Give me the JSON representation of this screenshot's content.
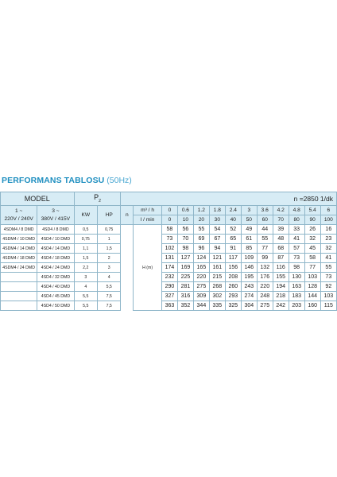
{
  "title": {
    "main": "PERFORMANS TABLOSU",
    "sub": "(50Hz)"
  },
  "header": {
    "model": "MODEL",
    "p2": "P",
    "p2_sub": "2",
    "speed": "n =2850 1/dk",
    "single_phase": "1 ~",
    "single_phase_v": "220V / 240V",
    "three_phase": "3 ~",
    "three_phase_v": "380V / 415V",
    "kw": "KW",
    "hp": "HP",
    "n": "n",
    "flow_m3h": "m³ / h",
    "flow_lmin": "l / min",
    "head_unit": "H (m)"
  },
  "flow_m3h": [
    "0",
    "0.6",
    "1.2",
    "1.8",
    "2.4",
    "3",
    "3.6",
    "4.2",
    "4.8",
    "5.4",
    "6"
  ],
  "flow_lmin": [
    "0",
    "10",
    "20",
    "30",
    "40",
    "50",
    "60",
    "70",
    "80",
    "90",
    "100"
  ],
  "rows": [
    {
      "m1": "4SDM4 / 8 DMD",
      "m3": "4SD4 / 8 DMD",
      "kw": "0,5",
      "hp": "0,75",
      "h": [
        "58",
        "56",
        "55",
        "54",
        "52",
        "49",
        "44",
        "39",
        "33",
        "26",
        "16"
      ]
    },
    {
      "m1": "4SDM4 / 10 DMD",
      "m3": "4SD4 / 10 DMD",
      "kw": "0,75",
      "hp": "1",
      "h": [
        "73",
        "70",
        "69",
        "67",
        "65",
        "61",
        "55",
        "48",
        "41",
        "32",
        "23"
      ]
    },
    {
      "m1": "4SDM4 / 14 DMD",
      "m3": "4SD4 / 14 DMD",
      "kw": "1,1",
      "hp": "1,5",
      "h": [
        "102",
        "98",
        "96",
        "94",
        "91",
        "85",
        "77",
        "68",
        "57",
        "45",
        "32"
      ]
    },
    {
      "m1": "4SDM4 / 18 DMD",
      "m3": "4SD4 / 18 DMD",
      "kw": "1,5",
      "hp": "2",
      "h": [
        "131",
        "127",
        "124",
        "121",
        "117",
        "109",
        "99",
        "87",
        "73",
        "58",
        "41"
      ]
    },
    {
      "m1": "4SDM4 / 24 DMD",
      "m3": "4SD4 / 24 DMD",
      "kw": "2,2",
      "hp": "3",
      "h": [
        "174",
        "169",
        "165",
        "161",
        "156",
        "146",
        "132",
        "116",
        "98",
        "77",
        "55"
      ]
    },
    {
      "m1": "",
      "m3": "4SD4 / 32 DMD",
      "kw": "3",
      "hp": "4",
      "h": [
        "232",
        "225",
        "220",
        "215",
        "208",
        "195",
        "176",
        "155",
        "130",
        "103",
        "73"
      ]
    },
    {
      "m1": "",
      "m3": "4SD4 / 40 DMD",
      "kw": "4",
      "hp": "5,5",
      "h": [
        "290",
        "281",
        "275",
        "268",
        "260",
        "243",
        "220",
        "194",
        "163",
        "128",
        "92"
      ]
    },
    {
      "m1": "",
      "m3": "4SD4 / 45 DMD",
      "kw": "5,5",
      "hp": "7,5",
      "h": [
        "327",
        "316",
        "309",
        "302",
        "293",
        "274",
        "248",
        "218",
        "183",
        "144",
        "103"
      ]
    },
    {
      "m1": "",
      "m3": "4SD4 / 50 DMD",
      "kw": "5,5",
      "hp": "7,5",
      "h": [
        "363",
        "352",
        "344",
        "335",
        "325",
        "304",
        "275",
        "242",
        "203",
        "160",
        "115"
      ]
    }
  ]
}
